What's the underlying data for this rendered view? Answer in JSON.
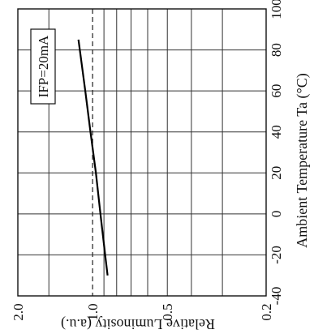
{
  "chart_data": {
    "type": "line",
    "orientation": "rotated-90-ccw",
    "x_axis": {
      "label": "Ambient Temperature Ta (°C)",
      "ticks": [
        -40,
        -20,
        0,
        20,
        40,
        60,
        80,
        100
      ],
      "tick_labels": [
        "-40",
        "-20",
        "0",
        "20",
        "40",
        "60",
        "80",
        "100"
      ],
      "range": [
        -40,
        100
      ],
      "position": "right"
    },
    "y_axis": {
      "label": "Relative Luminosity (a.u.)",
      "scale": "log",
      "range": [
        0.2,
        2.0
      ],
      "ticks": [
        0.2,
        0.5,
        1.0,
        2.0
      ],
      "tick_labels": [
        "0.2",
        "0.5",
        "1.0",
        "2.0"
      ],
      "position": "bottom"
    },
    "reference_line": {
      "value": 1.0,
      "style": "dashed"
    },
    "annotation": "IFP=20mA",
    "series": [
      {
        "x": [
          -30,
          -20,
          0,
          20,
          40,
          60,
          85
        ],
        "y": [
          0.87,
          0.89,
          0.93,
          0.97,
          1.02,
          1.07,
          1.14
        ]
      }
    ],
    "grid": true,
    "line_color": "#000000"
  }
}
